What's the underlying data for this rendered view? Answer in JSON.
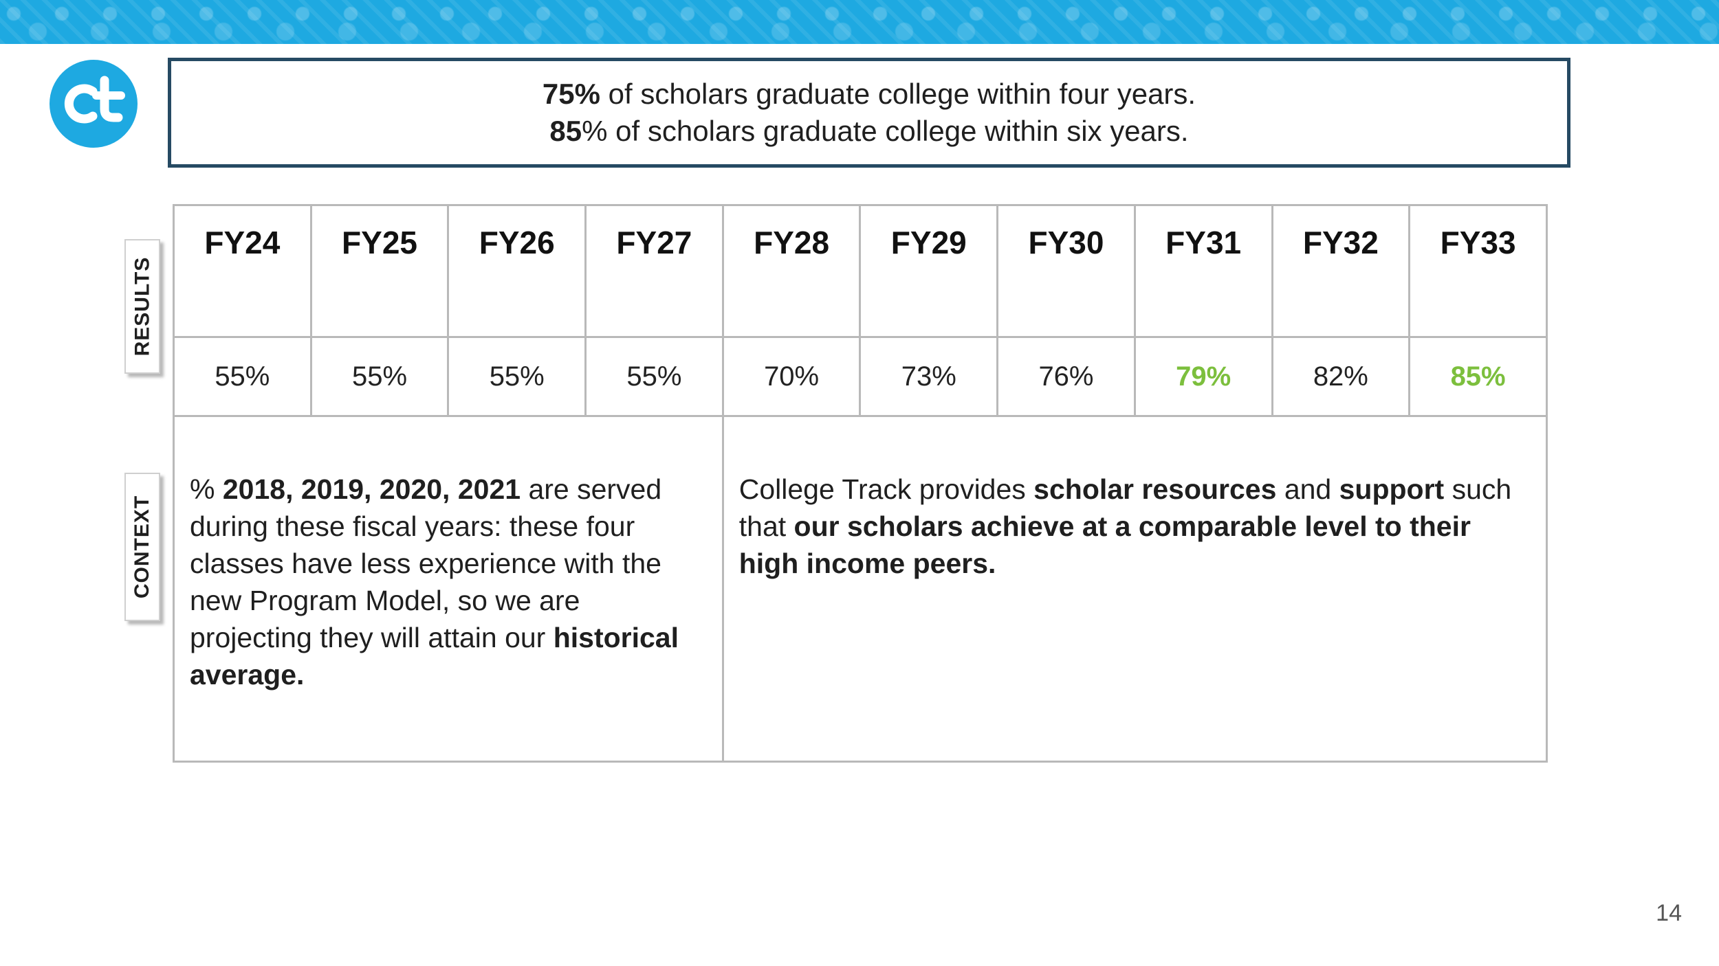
{
  "headline": {
    "line1": {
      "bold": "75%",
      "rest": " of scholars graduate college within four years."
    },
    "line2": {
      "bold": "85",
      "rest": "% of scholars graduate college within six years."
    }
  },
  "side_labels": {
    "results": "RESULTS",
    "context": "CONTEXT"
  },
  "table": {
    "columns": [
      {
        "year": "FY24",
        "value": "55%",
        "highlight": false
      },
      {
        "year": "FY25",
        "value": "55%",
        "highlight": false
      },
      {
        "year": "FY26",
        "value": "55%",
        "highlight": false
      },
      {
        "year": "FY27",
        "value": "55%",
        "highlight": false
      },
      {
        "year": "FY28",
        "value": "70%",
        "highlight": false
      },
      {
        "year": "FY29",
        "value": "73%",
        "highlight": false
      },
      {
        "year": "FY30",
        "value": "76%",
        "highlight": false
      },
      {
        "year": "FY31",
        "value": "79%",
        "highlight": true
      },
      {
        "year": "FY32",
        "value": "82%",
        "highlight": false
      },
      {
        "year": "FY33",
        "value": "85%",
        "highlight": true
      }
    ]
  },
  "context_left": {
    "t1": "% ",
    "b1": "2018, 2019, 2020, 2021",
    "t2": " are served during these fiscal years: these four classes have less experience with the new Program Model, so we are projecting they will attain our ",
    "b2": "historical average."
  },
  "context_right": {
    "t1": "College Track provides ",
    "b1": "scholar resources",
    "t2": " and ",
    "b2": "support",
    "t3": " such that ",
    "b3": "our scholars achieve at a comparable level to their high income peers."
  },
  "page_number": "14",
  "colors": {
    "banner": "#1ea9e1",
    "box_border": "#264a63",
    "highlight": "#7cbf3d"
  },
  "logo": {
    "icon": "college-track-logo-icon",
    "text": "ct"
  }
}
